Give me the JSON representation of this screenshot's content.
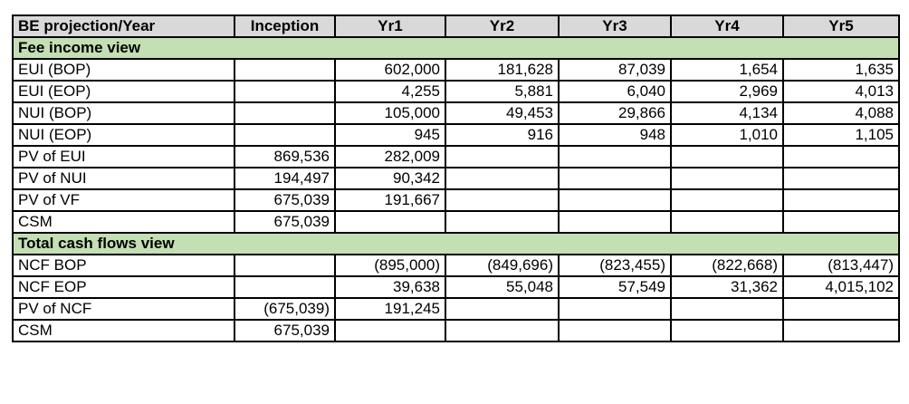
{
  "table": {
    "headers": [
      "BE projection/Year",
      "Inception",
      "Yr1",
      "Yr2",
      "Yr3",
      "Yr4",
      "Yr5"
    ],
    "header_bg": "#d9d9d9",
    "section_bg": "#c4dfb3",
    "sections": [
      {
        "title": "Fee income view",
        "rows": [
          {
            "label": "EUI (BOP)",
            "values": [
              "",
              "602,000",
              "181,628",
              "87,039",
              "1,654",
              "1,635"
            ]
          },
          {
            "label": "EUI (EOP)",
            "values": [
              "",
              "4,255",
              "5,881",
              "6,040",
              "2,969",
              "4,013"
            ]
          },
          {
            "label": "NUI (BOP)",
            "values": [
              "",
              "105,000",
              "49,453",
              "29,866",
              "4,134",
              "4,088"
            ]
          },
          {
            "label": "NUI (EOP)",
            "values": [
              "",
              "945",
              "916",
              "948",
              "1,010",
              "1,105"
            ]
          },
          {
            "label": "PV of EUI",
            "values": [
              "869,536",
              "282,009",
              "",
              "",
              "",
              ""
            ]
          },
          {
            "label": "PV of NUI",
            "values": [
              "194,497",
              "90,342",
              "",
              "",
              "",
              ""
            ]
          },
          {
            "label": "PV of VF",
            "values": [
              "675,039",
              "191,667",
              "",
              "",
              "",
              ""
            ]
          },
          {
            "label": "CSM",
            "values": [
              "675,039",
              "",
              "",
              "",
              "",
              ""
            ]
          }
        ]
      },
      {
        "title": "Total cash flows view",
        "rows": [
          {
            "label": "NCF BOP",
            "values": [
              "",
              "(895,000)",
              "(849,696)",
              "(823,455)",
              "(822,668)",
              "(813,447)"
            ]
          },
          {
            "label": "NCF EOP",
            "values": [
              "",
              "39,638",
              "55,048",
              "57,549",
              "31,362",
              "4,015,102"
            ]
          },
          {
            "label": "PV of NCF",
            "values": [
              "(675,039)",
              "191,245",
              "",
              "",
              "",
              ""
            ]
          },
          {
            "label": "CSM",
            "values": [
              "675,039",
              "",
              "",
              "",
              "",
              ""
            ]
          }
        ]
      }
    ]
  }
}
